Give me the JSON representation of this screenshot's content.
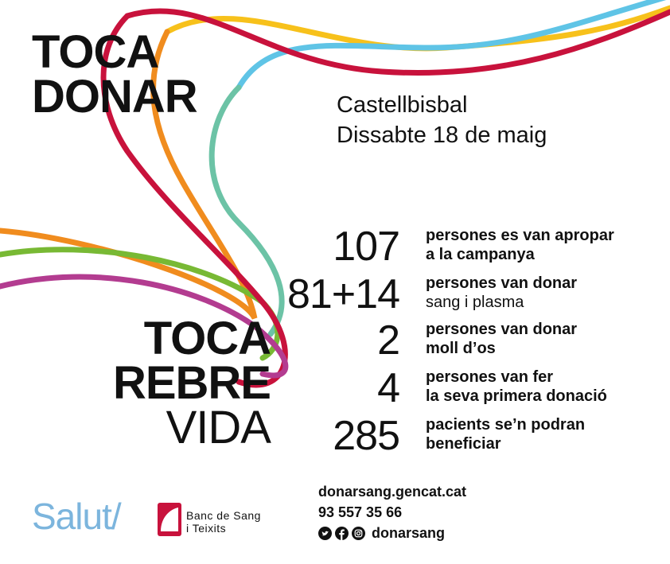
{
  "headline_top": {
    "line1": "TOCA",
    "line2": "DONAR"
  },
  "headline_bottom": {
    "line1": "TOCA",
    "line2": "REBRE",
    "line3": "VIDA"
  },
  "event": {
    "place": "Castellbisbal",
    "date": "Dissabte 18 de maig"
  },
  "stats": [
    {
      "number": "107",
      "line1": "persones es van apropar",
      "line2": "a la campanya"
    },
    {
      "number": "81+14",
      "line1": "persones van donar",
      "line2": "sang i plasma"
    },
    {
      "number": "2",
      "line1": "persones van donar",
      "line2": "moll d’os"
    },
    {
      "number": "4",
      "line1": "persones van fer",
      "line2": "la seva primera donació"
    },
    {
      "number": "285",
      "line1": "pacients se’n podran",
      "line2": "beneficiar"
    }
  ],
  "logos": {
    "salut": "Salut/",
    "bank_line1": "Banc de Sang",
    "bank_line2": "i Teixits"
  },
  "contact": {
    "web": "donarsang.gencat.cat",
    "phone": "93 557 35 66",
    "handle": "donarsang"
  },
  "icons": [
    "twitter-icon",
    "facebook-icon",
    "instagram-icon"
  ],
  "colors": {
    "ribbon_red": "#c8123c",
    "ribbon_yellow": "#f7c11b",
    "ribbon_blue": "#5fc4e6",
    "ribbon_teal": "#6cc3a6",
    "ribbon_orange": "#f08c1e",
    "ribbon_green": "#78b934",
    "ribbon_magenta": "#b33c90",
    "salut_blue": "#7cb5dd",
    "bank_red": "#c8123c"
  }
}
